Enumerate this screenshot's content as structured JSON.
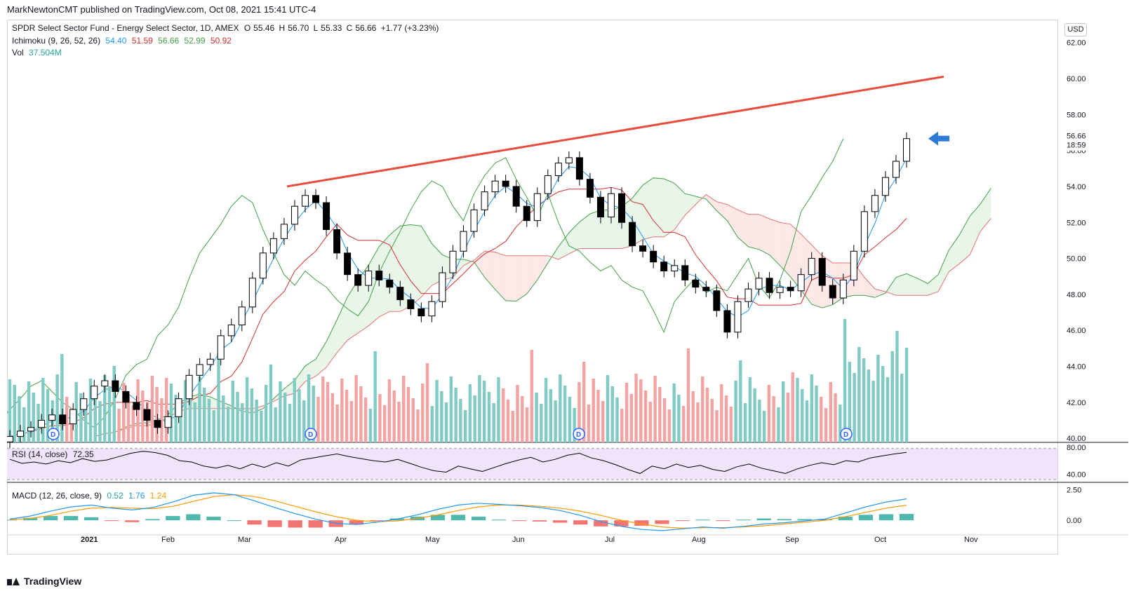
{
  "header": {
    "author": "MarkNewtonCMT",
    "published_text": "published on TradingView.com, Oct 08, 2021 15:41 UTC-4"
  },
  "legend": {
    "title": "SPDR Select Sector Fund - Energy Select Sector, 1D, AMEX",
    "ohlc": {
      "o_label": "O",
      "o": "55.46",
      "h_label": "H",
      "h": "56.70",
      "l_label": "L",
      "l": "55.33",
      "c_label": "C",
      "c": "56.66",
      "change": "+1.77 (+3.23%)"
    },
    "ichimoku_label": "Ichimoku (9, 26, 52, 26)",
    "ichimoku_values": [
      "54.40",
      "51.59",
      "56.66",
      "52.99",
      "50.92"
    ],
    "vol_label": "Vol",
    "vol_value": "37.504M",
    "rsi_label": "RSI (14, close)",
    "rsi_value": "72.35",
    "macd_label": "MACD (12, 26, close, 9)",
    "macd_values": [
      "0.52",
      "1.76",
      "1.24"
    ]
  },
  "currency": "USD",
  "brand": "TradingView",
  "price_axis": {
    "ticks": [
      "62.00",
      "60.00",
      "58.00",
      "56.00",
      "54.00",
      "52.00",
      "50.00",
      "48.00",
      "46.00",
      "44.00",
      "42.00",
      "40.00"
    ],
    "last_price_label": "56.66",
    "countdown_label": "18:59"
  },
  "rsi_axis": {
    "ticks": [
      "80.00",
      "40.00"
    ]
  },
  "macd_axis": {
    "ticks": [
      "2.50",
      "0.00"
    ]
  },
  "time_axis": {
    "labels": [
      "2021",
      "Feb",
      "Mar",
      "Apr",
      "May",
      "Jun",
      "Jul",
      "Aug",
      "Sep",
      "Oct",
      "Nov"
    ]
  },
  "dividend_marker": "D",
  "colors": {
    "up_candle": "#ffffff",
    "down_candle": "#000000",
    "tenkan": "#2196f3",
    "kijun": "#d32f2f",
    "chikou": "#43a047",
    "span_a": "#43a047",
    "span_b": "#e57373",
    "cloud_bull": "#e8f5e9",
    "cloud_bear": "#fde8e8",
    "vol_up": "#80cbc4",
    "vol_down": "#f4a3a3",
    "trendline": "#e84c3d",
    "arrow": "#2e7bd6",
    "rsi_line": "#000000",
    "rsi_band": "#f0e4fb",
    "macd_line": "#2196f3",
    "signal_line": "#ff9800",
    "hist_up": "#26a69a",
    "hist_down": "#ef5350"
  },
  "chart_data": [
    {
      "type": "candlestick",
      "title": "SPDR Select Sector Fund - Energy Select Sector, 1D, AMEX",
      "ylim": [
        39.5,
        63
      ],
      "x_labels": [
        "2021",
        "Feb",
        "Mar",
        "Apr",
        "May",
        "Jun",
        "Jul",
        "Aug",
        "Sep",
        "Oct",
        "Nov"
      ],
      "approx_close": [
        40.1,
        40.4,
        40.6,
        41.0,
        41.3,
        40.8,
        41.6,
        42.2,
        42.9,
        43.2,
        42.6,
        42.0,
        41.6,
        41.0,
        40.6,
        41.2,
        42.2,
        43.5,
        44.1,
        44.4,
        45.7,
        46.3,
        47.3,
        48.9,
        50.3,
        51.1,
        51.9,
        52.9,
        53.5,
        53.1,
        51.6,
        50.3,
        49.1,
        48.5,
        49.3,
        48.8,
        48.4,
        47.7,
        47.2,
        46.8,
        47.6,
        49.2,
        50.4,
        51.5,
        52.7,
        53.7,
        54.3,
        54.0,
        52.9,
        52.1,
        53.6,
        54.6,
        55.3,
        55.6,
        54.4,
        53.4,
        52.3,
        53.6,
        52.0,
        50.7,
        50.4,
        49.8,
        49.3,
        49.6,
        48.8,
        48.4,
        48.2,
        47.1,
        45.9,
        47.6,
        48.3,
        48.9,
        48.1,
        48.4,
        48.2,
        49.1,
        50.0,
        48.5,
        47.8,
        48.8,
        50.4,
        52.6,
        53.5,
        54.5,
        55.4,
        56.66
      ],
      "series": [
        {
          "name": "Ichimoku tenkan",
          "last": 54.4
        },
        {
          "name": "Ichimoku kijun",
          "last": 51.59
        },
        {
          "name": "Ichimoku chikou",
          "last": 56.66
        },
        {
          "name": "Ichimoku span A",
          "last": 52.99
        },
        {
          "name": "Ichimoku span B",
          "last": 50.92
        }
      ],
      "annotations": [
        "trendline from 54.0 (Mar) to 60.1 (Oct end)",
        "arrow pointing at last price 56.66"
      ]
    },
    {
      "type": "bar",
      "name": "Vol",
      "last_value": "37.504M",
      "bars_count": 190
    },
    {
      "type": "line",
      "name": "RSI (14, close)",
      "ylim": [
        30,
        85
      ],
      "band": [
        30,
        70
      ],
      "last_value": 72.35,
      "values": [
        62,
        56,
        58,
        55,
        60,
        57,
        63,
        59,
        61,
        66,
        71,
        74,
        72,
        68,
        60,
        58,
        52,
        49,
        53,
        48,
        55,
        50,
        57,
        52,
        61,
        64,
        67,
        70,
        66,
        63,
        60,
        58,
        62,
        56,
        50,
        45,
        43,
        52,
        48,
        44,
        50,
        56,
        61,
        65,
        58,
        62,
        68,
        71,
        64,
        60,
        54,
        47,
        41,
        52,
        48,
        55,
        50,
        53,
        47,
        44,
        51,
        55,
        49,
        45,
        41,
        48,
        53,
        57,
        54,
        60,
        58,
        64,
        67,
        70,
        72.35
      ]
    },
    {
      "type": "line",
      "name": "MACD (12, 26, close, 9)",
      "ylim": [
        -1.2,
        3.0
      ],
      "macd": [
        0.1,
        0.35,
        0.75,
        1.1,
        1.25,
        1.0,
        0.85,
        1.05,
        1.5,
        2.05,
        2.25,
        2.1,
        1.6,
        1.05,
        0.55,
        0.1,
        -0.25,
        -0.35,
        -0.15,
        0.1,
        0.45,
        0.9,
        1.25,
        1.4,
        1.3,
        1.2,
        1.05,
        0.8,
        0.4,
        -0.1,
        -0.5,
        -0.75,
        -0.85,
        -0.7,
        -0.55,
        -0.65,
        -0.5,
        -0.3,
        -0.2,
        -0.05,
        0.1,
        0.6,
        1.1,
        1.5,
        1.76
      ],
      "signal": [
        0.05,
        0.15,
        0.4,
        0.75,
        1.0,
        1.05,
        1.0,
        0.95,
        1.15,
        1.55,
        1.95,
        2.1,
        1.95,
        1.6,
        1.15,
        0.7,
        0.3,
        0.0,
        -0.12,
        -0.05,
        0.15,
        0.45,
        0.8,
        1.1,
        1.25,
        1.25,
        1.15,
        1.0,
        0.75,
        0.4,
        0.0,
        -0.3,
        -0.55,
        -0.65,
        -0.6,
        -0.6,
        -0.55,
        -0.45,
        -0.3,
        -0.15,
        0.0,
        0.3,
        0.65,
        1.0,
        1.24
      ],
      "histogram_last": 0.52
    }
  ]
}
